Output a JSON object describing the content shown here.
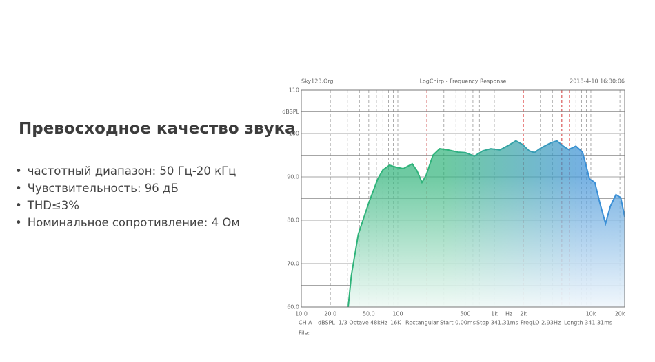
{
  "heading": "Превосходное качество звука",
  "bullets": [
    "частотный диапазон: 50 Гц-20 кГц",
    "Чувствительность: 96 дБ",
    "THD≤3%",
    "Номинальное сопротивление: 4 Ом"
  ],
  "chart_data": {
    "type": "line",
    "header": [
      "Sky123.Org",
      "LogChirp - Frequency Response",
      "2018-4-10 16:30:06"
    ],
    "y_label": "dBSPL",
    "x_label": "Hz",
    "log_x": true,
    "xlim": [
      10,
      22400
    ],
    "ylim": [
      60,
      110
    ],
    "xticks": [
      {
        "value": 10,
        "label": "10.0"
      },
      {
        "value": 20,
        "label": "20.0"
      },
      {
        "value": 50,
        "label": "50.0"
      },
      100,
      500,
      {
        "value": 1000,
        "label": "1k"
      },
      {
        "value": 2000,
        "label": "2k"
      },
      {
        "value": 10000,
        "label": "10k"
      },
      {
        "value": 20000,
        "label": "20k"
      }
    ],
    "yticks": [
      {
        "value": 60,
        "label": "60.0"
      },
      {
        "value": 70,
        "label": "70.0"
      },
      {
        "value": 80,
        "label": "80.0"
      },
      {
        "value": 90,
        "label": "90.0"
      },
      100,
      110
    ],
    "ygrid": [
      65,
      75,
      85,
      95,
      105
    ],
    "xgrid": [
      20,
      30,
      40,
      50,
      60,
      70,
      80,
      90,
      100,
      200,
      300,
      400,
      500,
      600,
      700,
      800,
      900,
      1000,
      2000,
      3000,
      4000,
      5000,
      6000,
      7000,
      8000,
      9000,
      10000,
      20000
    ],
    "markers": [
      200,
      2000,
      5000,
      6000
    ],
    "grid": true,
    "footer": [
      "CH A",
      "dBSPL",
      "1/3 Octave",
      "48kHz",
      "16K",
      "Rectangular",
      "Start 0.00ms",
      "Stop 341.31ms",
      "FreqLO 2.93Hz",
      "Length 341.31ms"
    ],
    "file_label": "File:",
    "x": [
      30.6,
      33,
      39,
      50,
      62,
      70,
      82,
      97,
      114,
      141,
      158,
      178,
      196,
      231,
      272,
      331,
      424,
      500,
      620,
      760,
      920,
      1140,
      1410,
      1670,
      1950,
      2300,
      2600,
      3050,
      3900,
      4450,
      5250,
      5890,
      7000,
      8200,
      9700,
      11000,
      12400,
      14200,
      15900,
      18200,
      20400,
      22400
    ],
    "series": [
      {
        "name": "CH A",
        "color": "#2fb37a",
        "color2": "#3a8fd6",
        "values": [
          60,
          67.3,
          76.8,
          84,
          89.5,
          91.6,
          92.7,
          92.2,
          91.9,
          93,
          91.4,
          88.7,
          90.3,
          95,
          96.5,
          96.2,
          95.7,
          95.6,
          94.8,
          96,
          96.5,
          96.2,
          97.3,
          98.3,
          97.5,
          96,
          95.6,
          96.7,
          97.9,
          98.3,
          97,
          96.3,
          97.1,
          95.7,
          89.5,
          88.7,
          84,
          79.2,
          83.2,
          85.9,
          85.2,
          80.8
        ]
      }
    ]
  }
}
